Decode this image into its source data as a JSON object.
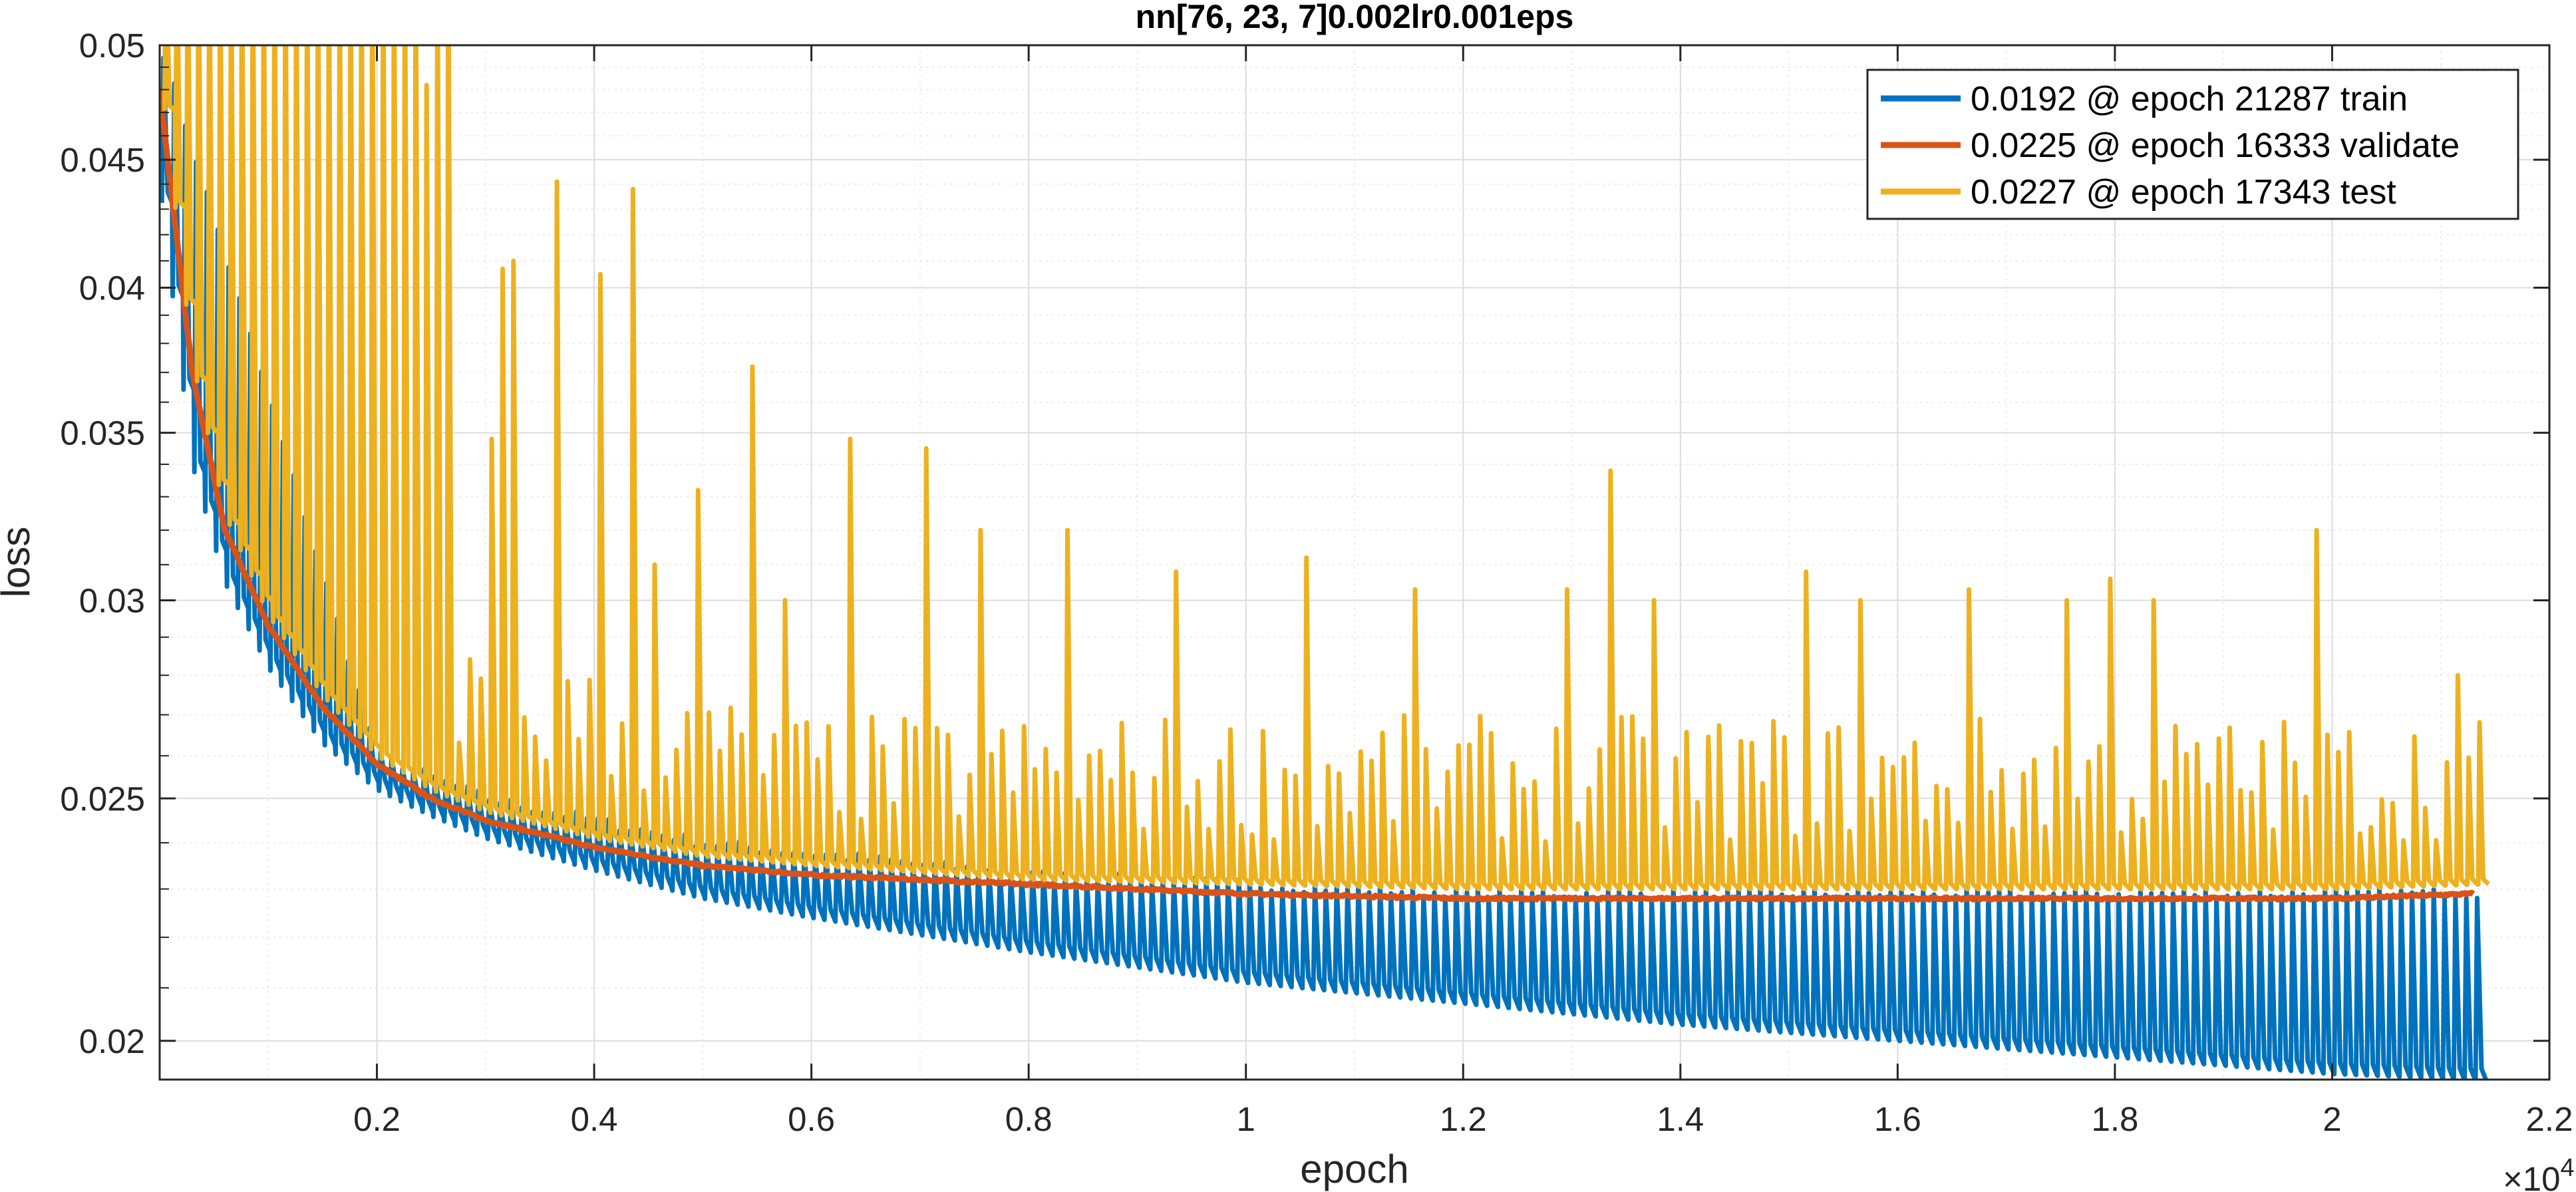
{
  "chart_data": {
    "type": "line",
    "title": "nn[76, 23, 7]0.002lr0.001eps",
    "xlabel": "epoch",
    "ylabel": "loss",
    "x_exponent_label": "×10",
    "x_exponent_power": "4",
    "x_scale_note": "x tick labels are in units of 10^4 epochs",
    "xlim": [
      0,
      22000
    ],
    "ylim": [
      0.0193,
      0.05
    ],
    "yscale": "log",
    "grid": true,
    "minor_grid": true,
    "legend_location": "top-right",
    "x_ticks": [
      {
        "value": 2000,
        "label": "0.2"
      },
      {
        "value": 4000,
        "label": "0.4"
      },
      {
        "value": 6000,
        "label": "0.6"
      },
      {
        "value": 8000,
        "label": "0.8"
      },
      {
        "value": 10000,
        "label": "1"
      },
      {
        "value": 12000,
        "label": "1.2"
      },
      {
        "value": 14000,
        "label": "1.4"
      },
      {
        "value": 16000,
        "label": "1.6"
      },
      {
        "value": 18000,
        "label": "1.8"
      },
      {
        "value": 20000,
        "label": "2"
      },
      {
        "value": 22000,
        "label": "2.2"
      }
    ],
    "y_ticks": [
      {
        "value": 0.02,
        "label": "0.02"
      },
      {
        "value": 0.025,
        "label": "0.025"
      },
      {
        "value": 0.03,
        "label": "0.03"
      },
      {
        "value": 0.035,
        "label": "0.035"
      },
      {
        "value": 0.04,
        "label": "0.04"
      },
      {
        "value": 0.045,
        "label": "0.045"
      },
      {
        "value": 0.05,
        "label": "0.05"
      }
    ],
    "series": [
      {
        "name": "0.0192 @ epoch 21287 train",
        "color": "#0072BD",
        "baseline": {
          "x": [
            0,
            300,
            600,
            1000,
            1500,
            2000,
            2500,
            3000,
            4000,
            5000,
            6000,
            8000,
            10000,
            12000,
            14000,
            16000,
            18000,
            20000,
            21300
          ],
          "y": [
            0.044,
            0.034,
            0.0305,
            0.0282,
            0.0263,
            0.0252,
            0.0246,
            0.0241,
            0.0234,
            0.0228,
            0.0224,
            0.0217,
            0.0211,
            0.0207,
            0.0203,
            0.02,
            0.0197,
            0.0194,
            0.0193
          ]
        },
        "spike_envelope": {
          "x": [
            0,
            2000,
            3000,
            5000,
            8000,
            12000,
            16000,
            20000,
            21300
          ],
          "y": [
            0.05,
            0.026,
            0.025,
            0.024,
            0.0233,
            0.0229,
            0.0229,
            0.0229,
            0.0229
          ]
        },
        "spike_spacing": 100
      },
      {
        "name": "0.0225 @ epoch 16333 validate",
        "color": "#D95319",
        "baseline": {
          "x": [
            0,
            300,
            600,
            1000,
            1500,
            2000,
            2500,
            3000,
            4000,
            5000,
            6000,
            8000,
            10000,
            12000,
            14000,
            16000,
            18000,
            20000,
            21300
          ],
          "y": [
            0.048,
            0.037,
            0.032,
            0.0293,
            0.0272,
            0.0258,
            0.025,
            0.0245,
            0.0239,
            0.0235,
            0.0233,
            0.0231,
            0.0229,
            0.0228,
            0.0228,
            0.0228,
            0.0228,
            0.0228,
            0.0229
          ]
        }
      },
      {
        "name": "0.0227 @ epoch 17343 test",
        "color": "#EDB120",
        "baseline": {
          "x": [
            0,
            300,
            600,
            1000,
            1500,
            2000,
            2500,
            3000,
            4000,
            5000,
            6000,
            8000,
            10000,
            12000,
            14000,
            16000,
            18000,
            20000,
            21300
          ],
          "y": [
            0.049,
            0.0375,
            0.0325,
            0.0296,
            0.0275,
            0.026,
            0.0252,
            0.0247,
            0.0241,
            0.0237,
            0.0235,
            0.0232,
            0.0231,
            0.023,
            0.023,
            0.023,
            0.023,
            0.023,
            0.0231
          ]
        },
        "peaks": [
          {
            "x": 2450,
            "y": 0.0482
          },
          {
            "x": 3000,
            "y": 0.0348
          },
          {
            "x": 3100,
            "y": 0.0407
          },
          {
            "x": 3200,
            "y": 0.041
          },
          {
            "x": 3600,
            "y": 0.0441
          },
          {
            "x": 4000,
            "y": 0.0405
          },
          {
            "x": 4300,
            "y": 0.0438
          },
          {
            "x": 4500,
            "y": 0.031
          },
          {
            "x": 4950,
            "y": 0.0332
          },
          {
            "x": 5400,
            "y": 0.0372
          },
          {
            "x": 5750,
            "y": 0.03
          },
          {
            "x": 6300,
            "y": 0.0348
          },
          {
            "x": 7000,
            "y": 0.0345
          },
          {
            "x": 7500,
            "y": 0.032
          },
          {
            "x": 8300,
            "y": 0.032
          },
          {
            "x": 9350,
            "y": 0.0308
          },
          {
            "x": 10500,
            "y": 0.0312
          },
          {
            "x": 11500,
            "y": 0.0303
          },
          {
            "x": 12900,
            "y": 0.0303
          },
          {
            "x": 13300,
            "y": 0.0338
          },
          {
            "x": 13700,
            "y": 0.03
          },
          {
            "x": 15100,
            "y": 0.0308
          },
          {
            "x": 15600,
            "y": 0.03
          },
          {
            "x": 16600,
            "y": 0.0303
          },
          {
            "x": 17500,
            "y": 0.03
          },
          {
            "x": 17900,
            "y": 0.0306
          },
          {
            "x": 18300,
            "y": 0.03
          },
          {
            "x": 19800,
            "y": 0.032
          },
          {
            "x": 21100,
            "y": 0.028
          }
        ],
        "spike_spacing": 100
      }
    ]
  }
}
